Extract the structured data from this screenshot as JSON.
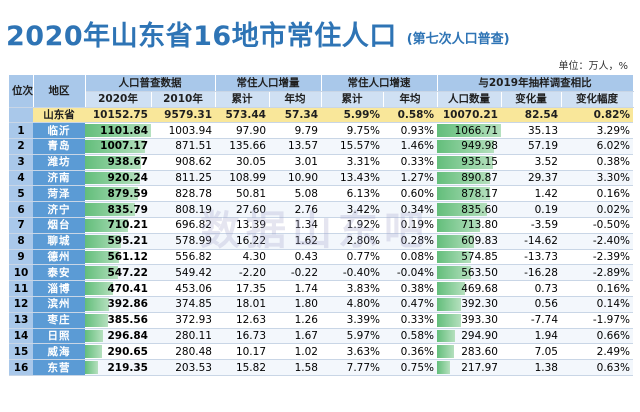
{
  "title": "2020年山东省16地市常住人口",
  "subtitle": "(第七次人口普查)",
  "unit": "单位：万人，%",
  "watermark": "数据山东吧",
  "headers": {
    "rank": "位次",
    "region": "地区",
    "census": "人口普查数据",
    "increase": "常住人口增量",
    "growth": "常住人口增速",
    "compare": "与2019年抽样调查相比",
    "y2020": "2020年",
    "y2010": "2010年",
    "cumulative": "累计",
    "annual": "年均",
    "cumulative2": "累计",
    "annual2": "年均",
    "pop": "人口数量",
    "change": "变化量",
    "change_rate": "变化幅度"
  },
  "province": {
    "name": "山东省",
    "y2020": "10152.75",
    "y2010": "9579.31",
    "inc_total": "573.44",
    "inc_annual": "57.34",
    "gr_total": "5.99%",
    "gr_annual": "0.58%",
    "pop2019": "10070.21",
    "change": "82.54",
    "change_rate": "0.82%"
  },
  "rows": [
    {
      "rank": "1",
      "city": "临沂",
      "y2020": "1101.84",
      "y2010": "1003.94",
      "inc_total": "97.90",
      "inc_annual": "9.79",
      "gr_total": "9.75%",
      "gr_annual": "0.93%",
      "pop2019": "1066.71",
      "change": "35.13",
      "change_rate": "3.29%",
      "v2020": 1101.84,
      "v2019": 1066.71
    },
    {
      "rank": "2",
      "city": "青岛",
      "y2020": "1007.17",
      "y2010": "871.51",
      "inc_total": "135.66",
      "inc_annual": "13.57",
      "gr_total": "15.57%",
      "gr_annual": "1.46%",
      "pop2019": "949.98",
      "change": "57.19",
      "change_rate": "6.02%",
      "v2020": 1007.17,
      "v2019": 949.98
    },
    {
      "rank": "3",
      "city": "潍坊",
      "y2020": "938.67",
      "y2010": "908.62",
      "inc_total": "30.05",
      "inc_annual": "3.01",
      "gr_total": "3.31%",
      "gr_annual": "0.33%",
      "pop2019": "935.15",
      "change": "3.52",
      "change_rate": "0.38%",
      "v2020": 938.67,
      "v2019": 935.15
    },
    {
      "rank": "4",
      "city": "济南",
      "y2020": "920.24",
      "y2010": "811.25",
      "inc_total": "108.99",
      "inc_annual": "10.90",
      "gr_total": "13.43%",
      "gr_annual": "1.27%",
      "pop2019": "890.87",
      "change": "29.37",
      "change_rate": "3.30%",
      "v2020": 920.24,
      "v2019": 890.87
    },
    {
      "rank": "5",
      "city": "菏泽",
      "y2020": "879.59",
      "y2010": "828.78",
      "inc_total": "50.81",
      "inc_annual": "5.08",
      "gr_total": "6.13%",
      "gr_annual": "0.60%",
      "pop2019": "878.17",
      "change": "1.42",
      "change_rate": "0.16%",
      "v2020": 879.59,
      "v2019": 878.17
    },
    {
      "rank": "6",
      "city": "济宁",
      "y2020": "835.79",
      "y2010": "808.19",
      "inc_total": "27.60",
      "inc_annual": "2.76",
      "gr_total": "3.42%",
      "gr_annual": "0.34%",
      "pop2019": "835.60",
      "change": "0.19",
      "change_rate": "0.02%",
      "v2020": 835.79,
      "v2019": 835.6
    },
    {
      "rank": "7",
      "city": "烟台",
      "y2020": "710.21",
      "y2010": "696.82",
      "inc_total": "13.39",
      "inc_annual": "1.34",
      "gr_total": "1.92%",
      "gr_annual": "0.19%",
      "pop2019": "713.80",
      "change": "-3.59",
      "change_rate": "-0.50%",
      "v2020": 710.21,
      "v2019": 713.8
    },
    {
      "rank": "8",
      "city": "聊城",
      "y2020": "595.21",
      "y2010": "578.99",
      "inc_total": "16.22",
      "inc_annual": "1.62",
      "gr_total": "2.80%",
      "gr_annual": "0.28%",
      "pop2019": "609.83",
      "change": "-14.62",
      "change_rate": "-2.40%",
      "v2020": 595.21,
      "v2019": 609.83
    },
    {
      "rank": "9",
      "city": "德州",
      "y2020": "561.12",
      "y2010": "556.82",
      "inc_total": "4.30",
      "inc_annual": "0.43",
      "gr_total": "0.77%",
      "gr_annual": "0.08%",
      "pop2019": "574.85",
      "change": "-13.73",
      "change_rate": "-2.39%",
      "v2020": 561.12,
      "v2019": 574.85
    },
    {
      "rank": "10",
      "city": "泰安",
      "y2020": "547.22",
      "y2010": "549.42",
      "inc_total": "-2.20",
      "inc_annual": "-0.22",
      "gr_total": "-0.40%",
      "gr_annual": "-0.04%",
      "pop2019": "563.50",
      "change": "-16.28",
      "change_rate": "-2.89%",
      "v2020": 547.22,
      "v2019": 563.5
    },
    {
      "rank": "11",
      "city": "淄博",
      "y2020": "470.41",
      "y2010": "453.06",
      "inc_total": "17.35",
      "inc_annual": "1.74",
      "gr_total": "3.83%",
      "gr_annual": "0.38%",
      "pop2019": "469.68",
      "change": "0.73",
      "change_rate": "0.16%",
      "v2020": 470.41,
      "v2019": 469.68
    },
    {
      "rank": "12",
      "city": "滨州",
      "y2020": "392.86",
      "y2010": "374.85",
      "inc_total": "18.01",
      "inc_annual": "1.80",
      "gr_total": "4.80%",
      "gr_annual": "0.47%",
      "pop2019": "392.30",
      "change": "0.56",
      "change_rate": "0.14%",
      "v2020": 392.86,
      "v2019": 392.3
    },
    {
      "rank": "13",
      "city": "枣庄",
      "y2020": "385.56",
      "y2010": "372.93",
      "inc_total": "12.63",
      "inc_annual": "1.26",
      "gr_total": "3.39%",
      "gr_annual": "0.33%",
      "pop2019": "393.30",
      "change": "-7.74",
      "change_rate": "-1.97%",
      "v2020": 385.56,
      "v2019": 393.3
    },
    {
      "rank": "14",
      "city": "日照",
      "y2020": "296.84",
      "y2010": "280.11",
      "inc_total": "16.73",
      "inc_annual": "1.67",
      "gr_total": "5.97%",
      "gr_annual": "0.58%",
      "pop2019": "294.90",
      "change": "1.94",
      "change_rate": "0.66%",
      "v2020": 296.84,
      "v2019": 294.9
    },
    {
      "rank": "15",
      "city": "威海",
      "y2020": "290.65",
      "y2010": "280.48",
      "inc_total": "10.17",
      "inc_annual": "1.02",
      "gr_total": "3.63%",
      "gr_annual": "0.36%",
      "pop2019": "283.60",
      "change": "7.05",
      "change_rate": "2.49%",
      "v2020": 290.65,
      "v2019": 283.6
    },
    {
      "rank": "16",
      "city": "东营",
      "y2020": "219.35",
      "y2010": "203.53",
      "inc_total": "15.82",
      "inc_annual": "1.58",
      "gr_total": "7.77%",
      "gr_annual": "0.75%",
      "pop2019": "217.97",
      "change": "1.38",
      "change_rate": "0.63%",
      "v2020": 219.35,
      "v2019": 217.97
    }
  ]
}
